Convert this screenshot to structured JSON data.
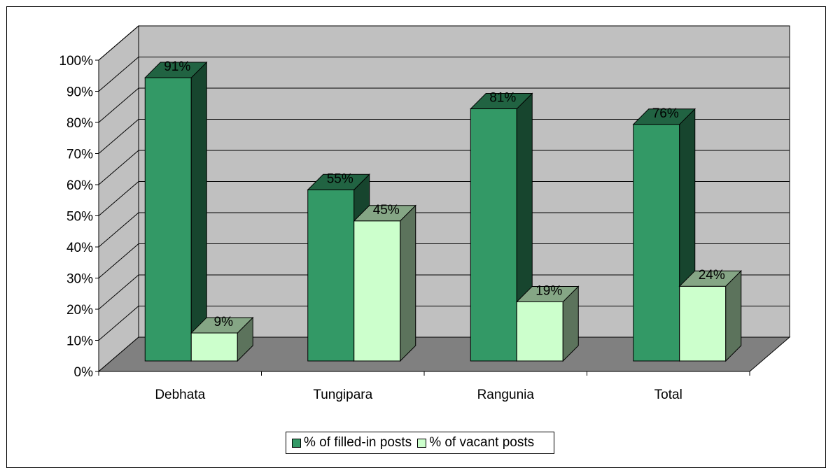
{
  "chart_data": {
    "type": "bar",
    "categories": [
      "Debhata",
      "Tungipara",
      "Rangunia",
      "Total"
    ],
    "series": [
      {
        "name": "% of filled-in posts",
        "values": [
          91,
          55,
          81,
          76
        ],
        "labels": [
          "91%",
          "55%",
          "81%",
          "76%"
        ],
        "color": "#339966"
      },
      {
        "name": "% of vacant posts",
        "values": [
          9,
          45,
          19,
          24
        ],
        "labels": [
          "9%",
          "45%",
          "19%",
          "24%"
        ],
        "color": "#ccffcc"
      }
    ],
    "y_ticks": [
      "0%",
      "10%",
      "20%",
      "30%",
      "40%",
      "50%",
      "60%",
      "70%",
      "80%",
      "90%",
      "100%"
    ],
    "ylim": [
      0,
      100
    ],
    "grid": true,
    "legend_position": "bottom",
    "colors": {
      "wall": "#c0c0c0",
      "floor": "#808080",
      "grid": "#000000"
    }
  }
}
